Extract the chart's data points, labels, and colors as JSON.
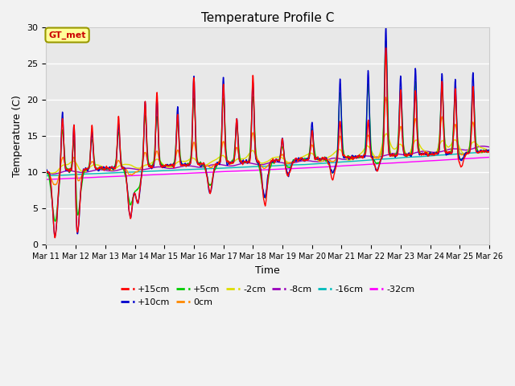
{
  "title": "Temperature Profile C",
  "xlabel": "Time",
  "ylabel": "Temperature (C)",
  "ylim": [
    0,
    30
  ],
  "xlim": [
    11,
    26
  ],
  "x_ticks": [
    11,
    12,
    13,
    14,
    15,
    16,
    17,
    18,
    19,
    20,
    21,
    22,
    23,
    24,
    25,
    26
  ],
  "x_tick_labels": [
    "Mar 11",
    "Mar 12",
    "Mar 13",
    "Mar 14",
    "Mar 15",
    "Mar 16",
    "Mar 17",
    "Mar 18",
    "Mar 19",
    "Mar 20",
    "Mar 21",
    "Mar 22",
    "Mar 23",
    "Mar 24",
    "Mar 25",
    "Mar 26"
  ],
  "y_ticks": [
    0,
    5,
    10,
    15,
    20,
    25,
    30
  ],
  "series_colors": {
    "+15cm": "#ff0000",
    "+10cm": "#0000cc",
    "+5cm": "#00cc00",
    "0cm": "#ff8800",
    "-2cm": "#dddd00",
    "-8cm": "#9900bb",
    "-16cm": "#00bbbb",
    "-32cm": "#ff00ff"
  },
  "gt_met_label": "GT_met",
  "gt_met_bg": "#ffff99",
  "gt_met_border": "#999900",
  "gt_met_text_color": "#cc0000",
  "plot_bg": "#e8e8e8",
  "fig_bg": "#f2f2f2",
  "title_fontsize": 11,
  "axis_label_fontsize": 9,
  "tick_fontsize": 7,
  "legend_fontsize": 8
}
